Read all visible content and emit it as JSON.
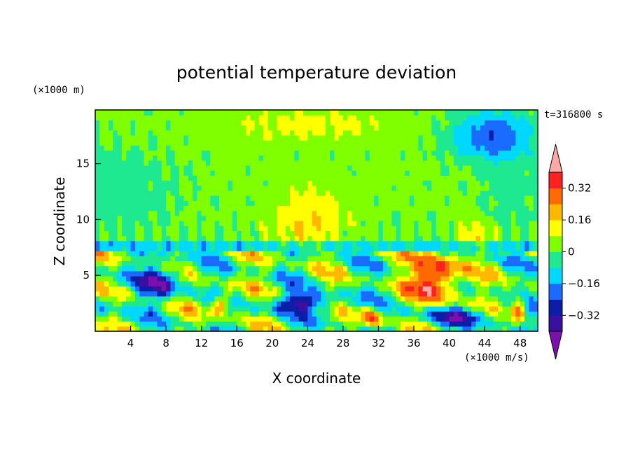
{
  "chart_data": {
    "type": "heatmap",
    "title": "potential temperature deviation",
    "xlabel": "X coordinate",
    "ylabel": "Z coordinate",
    "x_unit": "(×1000 m/s)",
    "y_unit": "(×1000 m)",
    "time_label": "t=316800 s",
    "xlim": [
      0,
      50
    ],
    "ylim": [
      0,
      19.8
    ],
    "x_ticks": [
      4,
      8,
      12,
      16,
      20,
      24,
      28,
      32,
      36,
      40,
      44,
      48
    ],
    "y_ticks": [
      5,
      10,
      15
    ],
    "colorbar": {
      "levels": [
        -0.4,
        -0.32,
        -0.24,
        -0.16,
        -0.08,
        0,
        0.08,
        0.16,
        0.24,
        0.32,
        0.4
      ],
      "tick_labels": [
        "0.32",
        "0.16",
        "0",
        "−0.16",
        "−0.32"
      ],
      "tick_values": [
        0.32,
        0.16,
        0,
        -0.16,
        -0.32
      ],
      "colors": [
        "#7b0fb0",
        "#3a10a0",
        "#0a1ea8",
        "#1a6bff",
        "#00d8ff",
        "#1ee890",
        "#7fff00",
        "#ffff00",
        "#ffb800",
        "#ff6a00",
        "#ff2020",
        "#ffa8a8"
      ]
    },
    "cells": {
      "x_step": 0.5,
      "z_step": 0.45,
      "nx": 100,
      "nz": 44
    }
  }
}
